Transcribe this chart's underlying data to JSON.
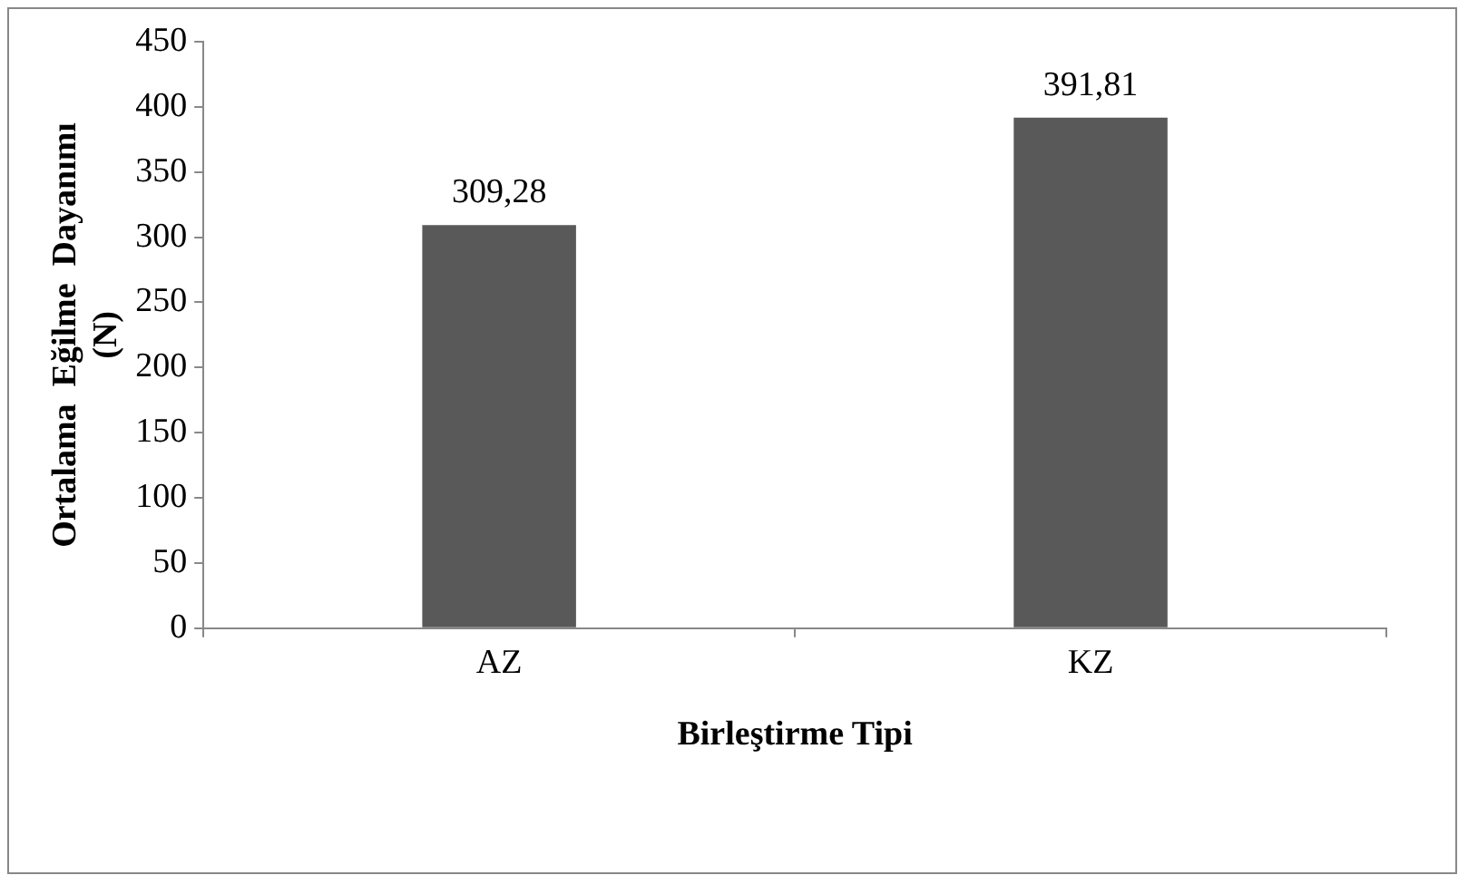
{
  "chart_data": {
    "type": "bar",
    "categories": [
      "AZ",
      "KZ"
    ],
    "values": [
      309.28,
      391.81
    ],
    "color": "#595959",
    "value_labels": [
      "309,28",
      "391,81"
    ],
    "ylim": [
      0,
      450
    ],
    "yticks": [
      0,
      50,
      100,
      150,
      200,
      250,
      300,
      350,
      400,
      450
    ],
    "xlabel": "Birleştirme Tipi",
    "ylabel": "Ortalama  Eğilme  Dayanımı (N)",
    "grid": false,
    "legend": false
  }
}
